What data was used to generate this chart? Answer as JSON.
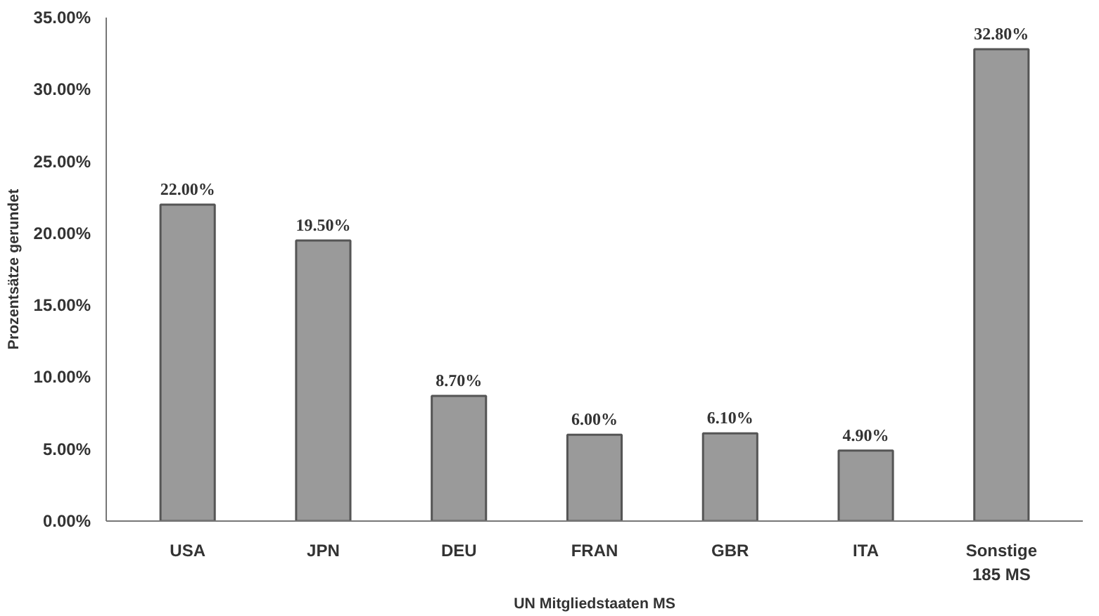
{
  "chart_data": {
    "type": "bar",
    "xlabel": "UN Mitgliedstaaten MS",
    "ylabel": "Prozentsätze gerundet",
    "categories": [
      "USA",
      "JPN",
      "DEU",
      "FRAN",
      "GBR",
      "ITA",
      "Sonstige\n185 MS"
    ],
    "values": [
      22.0,
      19.5,
      8.7,
      6.0,
      6.1,
      4.9,
      32.8
    ],
    "value_labels": [
      "22.00%",
      "19.50%",
      "8.70%",
      "6.00%",
      "6.10%",
      "4.90%",
      "32.80%"
    ],
    "color": "#9a9a9a",
    "ylim": [
      0,
      35
    ],
    "yticks": [
      {
        "value": 0,
        "label": "0.00%"
      },
      {
        "value": 5,
        "label": "5.00%"
      },
      {
        "value": 10,
        "label": "10.00%"
      },
      {
        "value": 15,
        "label": "15.00%"
      },
      {
        "value": 20,
        "label": "20.00%"
      },
      {
        "value": 25,
        "label": "25.00%"
      },
      {
        "value": 30,
        "label": "30.00%"
      },
      {
        "value": 35,
        "label": "35.00%"
      }
    ],
    "grid": false
  }
}
